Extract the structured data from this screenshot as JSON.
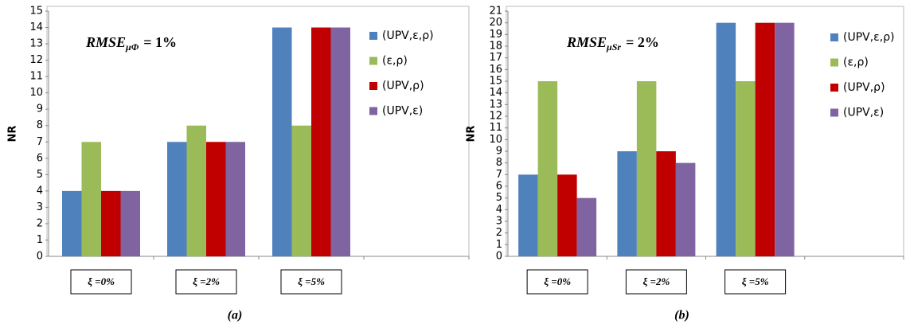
{
  "chart_data": [
    {
      "type": "bar",
      "panel_label": "(a)",
      "y_label": "NR",
      "annotation": {
        "main": "RMSE",
        "sub": "μΦ",
        "tail": "= 1%"
      },
      "categories": [
        "ξ =0%",
        "ξ =2%",
        "ξ =5%",
        null
      ],
      "series": [
        {
          "name": "(UPV,ε,ρ)",
          "color": "#4f81bd",
          "values": [
            4,
            7,
            14,
            null
          ]
        },
        {
          "name": "(ε,ρ)",
          "color": "#9bbb59",
          "values": [
            7,
            8,
            8,
            null
          ]
        },
        {
          "name": "(UPV,ρ)",
          "color": "#c00000",
          "values": [
            4,
            7,
            14,
            null
          ]
        },
        {
          "name": "(UPV,ε)",
          "color": "#8064a2",
          "values": [
            4,
            7,
            14,
            null
          ]
        }
      ],
      "ylim": [
        0,
        15
      ],
      "yticks": [
        0,
        1,
        2,
        3,
        4,
        5,
        6,
        7,
        8,
        9,
        10,
        11,
        12,
        13,
        14,
        15
      ],
      "legend": "top-right"
    },
    {
      "type": "bar",
      "panel_label": "(b)",
      "y_label": "NR",
      "annotation": {
        "main": "RMSE",
        "sub": "μSr",
        "tail": "= 2%"
      },
      "categories": [
        "ξ =0%",
        "ξ =2%",
        "ξ =5%",
        null
      ],
      "series": [
        {
          "name": "(UPV,ε,ρ)",
          "color": "#4f81bd",
          "values": [
            7,
            9,
            20,
            null
          ]
        },
        {
          "name": "(ε,ρ)",
          "color": "#9bbb59",
          "values": [
            15,
            15,
            15,
            null
          ]
        },
        {
          "name": "(UPV,ρ)",
          "color": "#c00000",
          "values": [
            7,
            9,
            20,
            null
          ]
        },
        {
          "name": "(UPV,ε)",
          "color": "#8064a2",
          "values": [
            5,
            8,
            20,
            null
          ]
        }
      ],
      "ylim": [
        0,
        21
      ],
      "yticks": [
        0,
        1,
        2,
        3,
        4,
        5,
        6,
        7,
        8,
        9,
        10,
        11,
        12,
        13,
        14,
        15,
        16,
        17,
        18,
        19,
        20,
        21
      ],
      "legend": "top-right"
    }
  ]
}
